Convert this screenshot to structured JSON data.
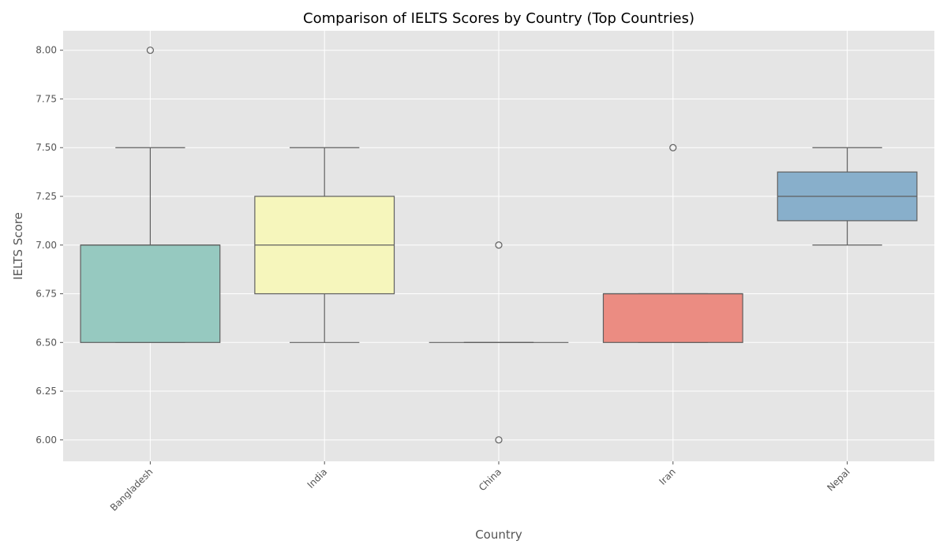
{
  "chart_data": {
    "type": "box",
    "title": "Comparison of IELTS Scores by Country (Top Countries)",
    "xlabel": "Country",
    "ylabel": "IELTS Score",
    "ylim": [
      5.89,
      8.1
    ],
    "y_ticks": [
      "6.00",
      "6.25",
      "6.50",
      "6.75",
      "7.00",
      "7.25",
      "7.50",
      "7.75",
      "8.00"
    ],
    "y_tick_values": [
      6.0,
      6.25,
      6.5,
      6.75,
      7.0,
      7.25,
      7.5,
      7.75,
      8.0
    ],
    "grid": true,
    "categories": [
      "Bangladesh",
      "India",
      "China",
      "Iran",
      "Nepal"
    ],
    "boxes": [
      {
        "category": "Bangladesh",
        "whisker_low": 6.5,
        "q1": 6.5,
        "median": 7.0,
        "q3": 7.0,
        "whisker_high": 7.5,
        "outliers": [
          8.0
        ],
        "color": "#96c9c0"
      },
      {
        "category": "India",
        "whisker_low": 6.5,
        "q1": 6.75,
        "median": 7.0,
        "q3": 7.25,
        "whisker_high": 7.5,
        "outliers": [],
        "color": "#f6f6bc"
      },
      {
        "category": "China",
        "whisker_low": 6.5,
        "q1": 6.5,
        "median": 6.5,
        "q3": 6.5,
        "whisker_high": 6.5,
        "outliers": [
          7.0,
          6.0
        ],
        "color": "#b8b4d4"
      },
      {
        "category": "Iran",
        "whisker_low": 6.5,
        "q1": 6.5,
        "median": 6.75,
        "q3": 6.75,
        "whisker_high": 6.75,
        "outliers": [
          7.5
        ],
        "color": "#eb8c82"
      },
      {
        "category": "Nepal",
        "whisker_low": 7.0,
        "q1": 7.125,
        "median": 7.25,
        "q3": 7.375,
        "whisker_high": 7.5,
        "outliers": [],
        "color": "#88afcb"
      }
    ]
  }
}
